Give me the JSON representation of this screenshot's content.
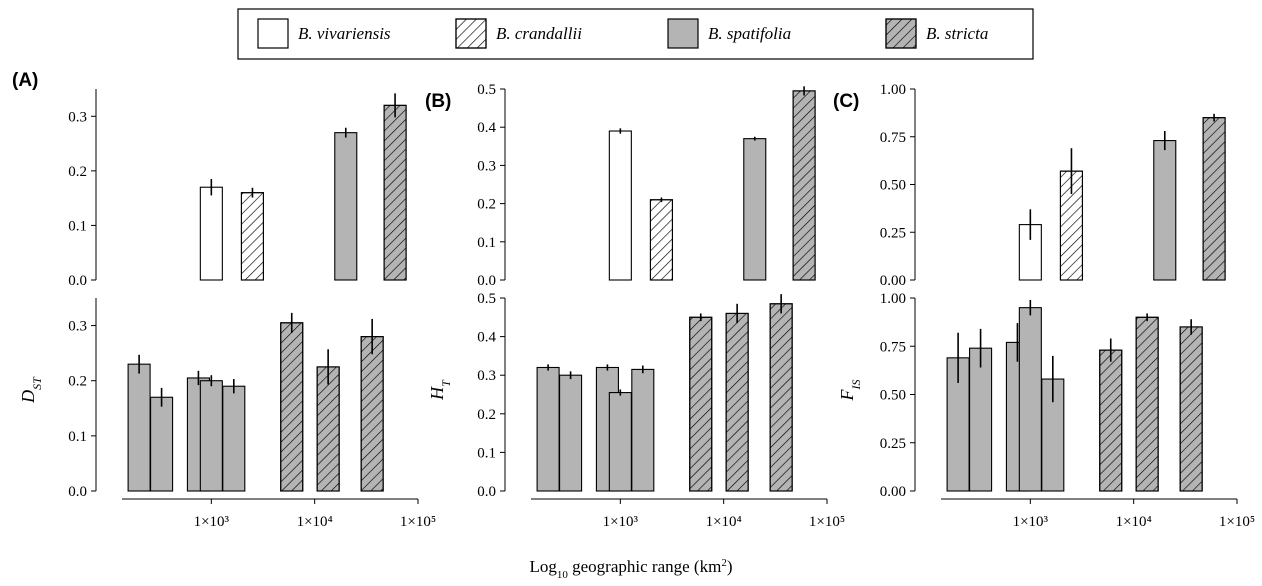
{
  "colors": {
    "open": "#ffffff",
    "gray": "#b4b4b4",
    "stroke": "#000000"
  },
  "legend": {
    "items": [
      {
        "label": "B. vivariensis",
        "fill": "open",
        "hatch": false
      },
      {
        "label": "B. crandallii",
        "fill": "open",
        "hatch": true
      },
      {
        "label": "B. spatifolia",
        "fill": "gray",
        "hatch": false
      },
      {
        "label": "B. stricta",
        "fill": "gray",
        "hatch": true
      }
    ],
    "placement": "top-center"
  },
  "shared_xlabel": {
    "prefix": "Log",
    "sub": "10",
    "middle": " geographic range (km",
    "sup": "2",
    "suffix": ")"
  },
  "chart_data": [
    {
      "type": "bar",
      "panel": "(A)",
      "ylabel_main": "D",
      "ylabel_sub": "ST",
      "x_scale": "log10",
      "x_ticks": [
        1000,
        10000,
        100000
      ],
      "x_tick_labels": [
        "1×10³",
        "1×10⁴",
        "1×10⁵"
      ],
      "top": {
        "ylim": [
          0,
          0.35
        ],
        "yticks": [
          0.0,
          0.1,
          0.2,
          0.3
        ],
        "ytick_labels": [
          "0.0",
          "0.1",
          "0.2",
          "0.3"
        ],
        "bars": [
          {
            "x": 1000,
            "value": 0.17,
            "err": 0.015,
            "species": "B. vivariensis"
          },
          {
            "x": 2500,
            "value": 0.16,
            "err": 0.009,
            "species": "B. crandallii"
          },
          {
            "x": 20000,
            "value": 0.27,
            "err": 0.009,
            "species": "B. spatifolia"
          },
          {
            "x": 60000,
            "value": 0.32,
            "err": 0.022,
            "species": "B. stricta"
          }
        ]
      },
      "bottom": {
        "ylim": [
          0,
          0.35
        ],
        "yticks": [
          0.0,
          0.1,
          0.2,
          0.3
        ],
        "ytick_labels": [
          "0.0",
          "0.1",
          "0.2",
          "0.3"
        ],
        "bars": [
          {
            "x": 200,
            "value": 0.23,
            "err": 0.017,
            "species": "B. spatifolia"
          },
          {
            "x": 330,
            "value": 0.17,
            "err": 0.017,
            "species": "B. spatifolia"
          },
          {
            "x": 750,
            "value": 0.205,
            "err": 0.013,
            "species": "B. spatifolia"
          },
          {
            "x": 1000,
            "value": 0.2,
            "err": 0.01,
            "species": "B. spatifolia"
          },
          {
            "x": 1650,
            "value": 0.19,
            "err": 0.013,
            "species": "B. spatifolia"
          },
          {
            "x": 6000,
            "value": 0.305,
            "err": 0.018,
            "species": "B. stricta"
          },
          {
            "x": 13500,
            "value": 0.225,
            "err": 0.032,
            "species": "B. stricta"
          },
          {
            "x": 36000,
            "value": 0.28,
            "err": 0.032,
            "species": "B. stricta"
          }
        ]
      }
    },
    {
      "type": "bar",
      "panel": "(B)",
      "ylabel_main": "H",
      "ylabel_sub": "T",
      "x_scale": "log10",
      "x_ticks": [
        1000,
        10000,
        100000
      ],
      "x_tick_labels": [
        "1×10³",
        "1×10⁴",
        "1×10⁵"
      ],
      "top": {
        "ylim": [
          0,
          0.5
        ],
        "yticks": [
          0.0,
          0.1,
          0.2,
          0.3,
          0.4,
          0.5
        ],
        "ytick_labels": [
          "0.0",
          "0.1",
          "0.2",
          "0.3",
          "0.4",
          "0.5"
        ],
        "bars": [
          {
            "x": 1000,
            "value": 0.39,
            "err": 0.007,
            "species": "B. vivariensis"
          },
          {
            "x": 2500,
            "value": 0.21,
            "err": 0.006,
            "species": "B. crandallii"
          },
          {
            "x": 20000,
            "value": 0.37,
            "err": 0.005,
            "species": "B. spatifolia"
          },
          {
            "x": 60000,
            "value": 0.495,
            "err": 0.012,
            "species": "B. stricta"
          }
        ]
      },
      "bottom": {
        "ylim": [
          0,
          0.5
        ],
        "yticks": [
          0.0,
          0.1,
          0.2,
          0.3,
          0.4,
          0.5
        ],
        "ytick_labels": [
          "0.0",
          "0.1",
          "0.2",
          "0.3",
          "0.4",
          "0.5"
        ],
        "bars": [
          {
            "x": 200,
            "value": 0.32,
            "err": 0.008,
            "species": "B. spatifolia"
          },
          {
            "x": 330,
            "value": 0.3,
            "err": 0.01,
            "species": "B. spatifolia"
          },
          {
            "x": 750,
            "value": 0.32,
            "err": 0.008,
            "species": "B. spatifolia"
          },
          {
            "x": 1000,
            "value": 0.255,
            "err": 0.008,
            "species": "B. spatifolia"
          },
          {
            "x": 1650,
            "value": 0.315,
            "err": 0.01,
            "species": "B. spatifolia"
          },
          {
            "x": 6000,
            "value": 0.45,
            "err": 0.01,
            "species": "B. stricta"
          },
          {
            "x": 13500,
            "value": 0.46,
            "err": 0.025,
            "species": "B. stricta"
          },
          {
            "x": 36000,
            "value": 0.485,
            "err": 0.025,
            "species": "B. stricta"
          }
        ]
      }
    },
    {
      "type": "bar",
      "panel": "(C)",
      "ylabel_main": "F",
      "ylabel_sub": "IS",
      "x_scale": "log10",
      "x_ticks": [
        1000,
        10000,
        100000
      ],
      "x_tick_labels": [
        "1×10³",
        "1×10⁴",
        "1×10⁵"
      ],
      "top": {
        "ylim": [
          0,
          1.0
        ],
        "yticks": [
          0.0,
          0.25,
          0.5,
          0.75,
          1.0
        ],
        "ytick_labels": [
          "0.00",
          "0.25",
          "0.50",
          "0.75",
          "1.00"
        ],
        "bars": [
          {
            "x": 1000,
            "value": 0.29,
            "err": 0.08,
            "species": "B. vivariensis"
          },
          {
            "x": 2500,
            "value": 0.57,
            "err": 0.12,
            "species": "B. crandallii"
          },
          {
            "x": 20000,
            "value": 0.73,
            "err": 0.05,
            "species": "B. spatifolia"
          },
          {
            "x": 60000,
            "value": 0.85,
            "err": 0.02,
            "species": "B. stricta"
          }
        ]
      },
      "bottom": {
        "ylim": [
          0,
          1.0
        ],
        "yticks": [
          0.0,
          0.25,
          0.5,
          0.75,
          1.0
        ],
        "ytick_labels": [
          "0.00",
          "0.25",
          "0.50",
          "0.75",
          "1.00"
        ],
        "bars": [
          {
            "x": 200,
            "value": 0.69,
            "err": 0.13,
            "species": "B. spatifolia"
          },
          {
            "x": 330,
            "value": 0.74,
            "err": 0.1,
            "species": "B. spatifolia"
          },
          {
            "x": 750,
            "value": 0.77,
            "err": 0.1,
            "species": "B. spatifolia"
          },
          {
            "x": 1000,
            "value": 0.95,
            "err": 0.04,
            "species": "B. spatifolia"
          },
          {
            "x": 1650,
            "value": 0.58,
            "err": 0.12,
            "species": "B. spatifolia"
          },
          {
            "x": 6000,
            "value": 0.73,
            "err": 0.06,
            "species": "B. stricta"
          },
          {
            "x": 13500,
            "value": 0.9,
            "err": 0.02,
            "species": "B. stricta"
          },
          {
            "x": 36000,
            "value": 0.85,
            "err": 0.04,
            "species": "B. stricta"
          }
        ]
      }
    }
  ]
}
